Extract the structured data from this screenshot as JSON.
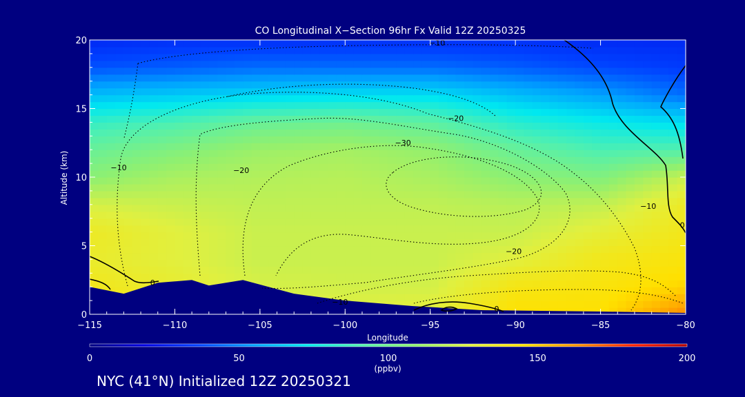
{
  "chart_data": {
    "type": "heatmap",
    "title": "CO Longitudinal X−Section 96hr  Fx Valid 12Z 20250325",
    "xlabel": "Longitude",
    "ylabel": "Altitude (km)",
    "xlim": [
      -115,
      -80
    ],
    "ylim": [
      0,
      20
    ],
    "x_ticks": [
      -115,
      -110,
      -105,
      -100,
      -95,
      -90,
      -85,
      -80
    ],
    "x_tick_labels": [
      "−115",
      "−110",
      "−105",
      "−100",
      "−95",
      "−90",
      "−85",
      "−80"
    ],
    "y_ticks": [
      0,
      5,
      10,
      15,
      20
    ],
    "y_tick_labels": [
      "0",
      "5",
      "10",
      "15",
      "20"
    ],
    "colorbar": {
      "min": 0,
      "max": 200,
      "ticks": [
        0,
        50,
        100,
        150,
        200
      ],
      "tick_labels": [
        "0",
        "50",
        "100",
        "150",
        "200"
      ],
      "unit": "(ppbv)",
      "colors": [
        "#000080",
        "#0000e0",
        "#0040ff",
        "#00a0ff",
        "#00e8f0",
        "#50f0b0",
        "#90f070",
        "#e0f040",
        "#ffe000",
        "#ff9000",
        "#ff2000",
        "#b00000"
      ]
    },
    "field": {
      "levels_km": [
        0,
        2,
        4,
        6,
        8,
        10,
        12,
        14,
        16,
        18,
        20
      ],
      "longitudes": [
        -115,
        -110,
        -105,
        -100,
        -95,
        -90,
        -85,
        -80
      ],
      "values_ppbv": [
        [
          140,
          140,
          130,
          128,
          130,
          145,
          145,
          165
        ],
        [
          138,
          132,
          125,
          124,
          124,
          140,
          142,
          148
        ],
        [
          133,
          128,
          122,
          122,
          122,
          128,
          138,
          142
        ],
        [
          135,
          128,
          122,
          122,
          122,
          122,
          130,
          138
        ],
        [
          125,
          122,
          120,
          120,
          120,
          118,
          120,
          135
        ],
        [
          108,
          115,
          117,
          118,
          115,
          108,
          105,
          122
        ],
        [
          98,
          105,
          112,
          114,
          110,
          98,
          90,
          92
        ],
        [
          85,
          90,
          98,
          100,
          95,
          82,
          75,
          70
        ],
        [
          62,
          65,
          68,
          70,
          70,
          62,
          55,
          45
        ],
        [
          40,
          42,
          45,
          45,
          45,
          42,
          38,
          35
        ],
        [
          30,
          32,
          32,
          32,
          32,
          32,
          30,
          30
        ]
      ]
    },
    "terrain_km": [
      [
        -115,
        2.0
      ],
      [
        -113,
        1.5
      ],
      [
        -111,
        2.3
      ],
      [
        -109,
        2.5
      ],
      [
        -108,
        2.1
      ],
      [
        -106,
        2.5
      ],
      [
        -103,
        1.5
      ],
      [
        -100,
        1.0
      ],
      [
        -96,
        0.6
      ],
      [
        -92,
        0.3
      ],
      [
        -85,
        0.2
      ],
      [
        -80,
        0.1
      ]
    ],
    "contours": [
      {
        "label": "−10",
        "label_at": [
          -113.3,
          10.5
        ],
        "style": "dotted"
      },
      {
        "label": "−20",
        "label_at": [
          -106.1,
          10.3
        ],
        "style": "dotted"
      },
      {
        "label": "−30",
        "label_at": [
          -96.6,
          12.3
        ],
        "style": "dotted"
      },
      {
        "label": "−20",
        "label_at": [
          -93.5,
          14.1
        ],
        "style": "dotted"
      },
      {
        "label": "−10",
        "label_at": [
          -94.6,
          19.6
        ],
        "style": "dotted"
      },
      {
        "label": "−10",
        "label_at": [
          -82.2,
          7.7
        ],
        "style": "dotted"
      },
      {
        "label": "−20",
        "label_at": [
          -90.1,
          4.4
        ],
        "style": "dotted"
      },
      {
        "label": "−10",
        "label_at": [
          -100.3,
          0.7
        ],
        "style": "dotted"
      },
      {
        "label": "0",
        "label_at": [
          -111.3,
          2.1
        ],
        "style": "solid"
      },
      {
        "label": "0",
        "label_at": [
          -91.1,
          0.2
        ],
        "style": "solid"
      },
      {
        "label": "0",
        "label_at": [
          -80.2,
          6.3
        ],
        "style": "solid"
      }
    ]
  },
  "footer": "NYC (41°N) Initialized 12Z 20250321"
}
